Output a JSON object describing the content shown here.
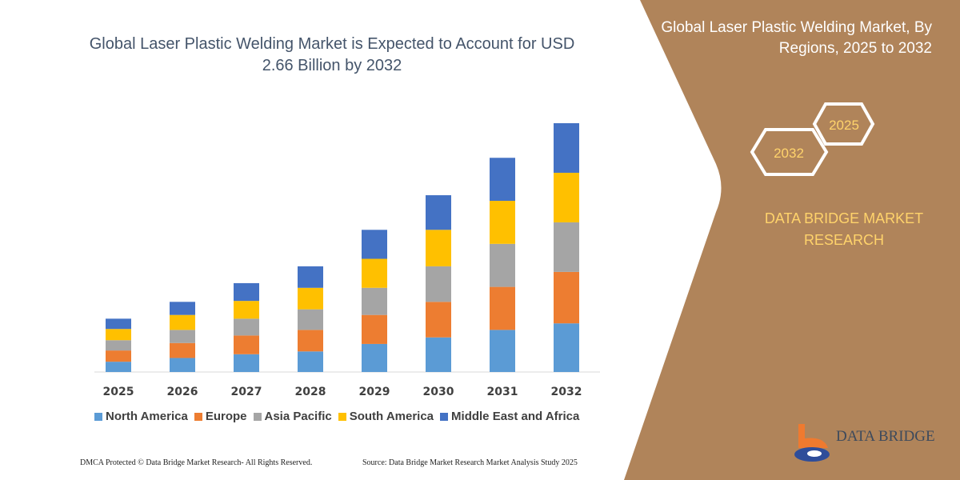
{
  "colors": {
    "panel": "#b0845a",
    "north_america": "#5b9bd5",
    "europe": "#ed7d31",
    "asia_pacific": "#a5a5a5",
    "south_america": "#ffc000",
    "middle_east_africa": "#4472c4",
    "title": "#44546a",
    "accent_text": "#ffd36b"
  },
  "side_panel": {
    "title": "Global Laser Plastic Welding Market, By Regions, 2025 to 2032",
    "hex_left": "2032",
    "hex_right": "2025",
    "brand": "DATA BRIDGE MARKET RESEARCH",
    "logo_text": "DATA BRIDGE"
  },
  "footer": {
    "left": "DMCA Protected © Data Bridge Market Research-  All Rights Reserved.",
    "right": "Source: Data Bridge Market Research  Market Analysis Study 2025"
  },
  "chart_data": {
    "type": "bar",
    "stacked": true,
    "title": "Global Laser Plastic Welding Market is Expected to Account for USD 2.66 Billion by 2032",
    "xlabel": "",
    "ylabel": "",
    "grid": false,
    "legend": "bottom",
    "categories": [
      "2025",
      "2026",
      "2027",
      "2028",
      "2029",
      "2030",
      "2031",
      "2032"
    ],
    "ylim": [
      0,
      2.66
    ],
    "series": [
      {
        "name": "North America",
        "color": "#5b9bd5",
        "values": [
          0.11,
          0.15,
          0.19,
          0.22,
          0.3,
          0.37,
          0.45,
          0.52
        ]
      },
      {
        "name": "Europe",
        "color": "#ed7d31",
        "values": [
          0.12,
          0.16,
          0.2,
          0.23,
          0.31,
          0.38,
          0.46,
          0.55
        ]
      },
      {
        "name": "Asia Pacific",
        "color": "#a5a5a5",
        "values": [
          0.11,
          0.14,
          0.18,
          0.22,
          0.29,
          0.38,
          0.46,
          0.53
        ]
      },
      {
        "name": "South America",
        "color": "#ffc000",
        "values": [
          0.12,
          0.16,
          0.19,
          0.23,
          0.31,
          0.39,
          0.46,
          0.53
        ]
      },
      {
        "name": "Middle East and Africa",
        "color": "#4472c4",
        "values": [
          0.11,
          0.14,
          0.19,
          0.23,
          0.31,
          0.37,
          0.46,
          0.53
        ]
      }
    ]
  }
}
